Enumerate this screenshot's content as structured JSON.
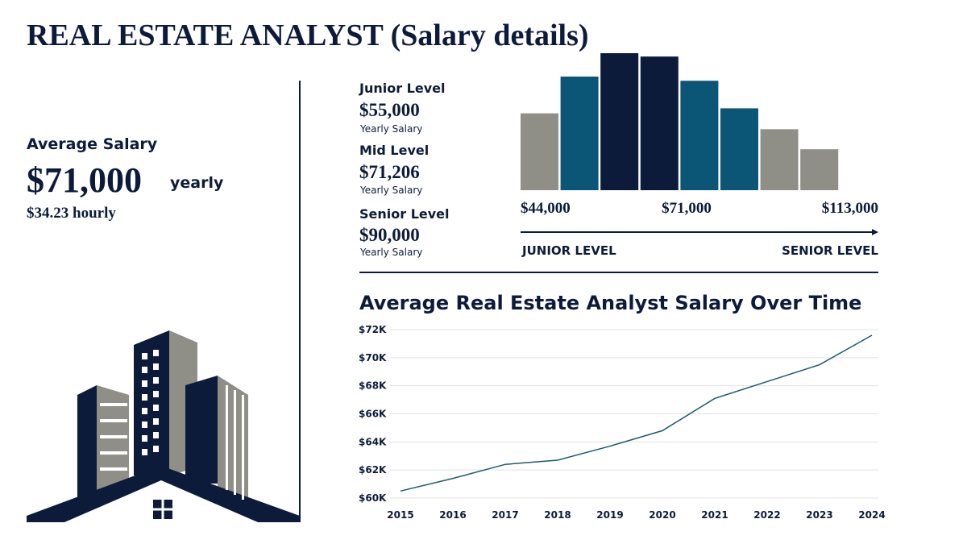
{
  "title": "REAL ESTATE ANALYST (Salary details)",
  "summary": {
    "label": "Average Salary",
    "value": "$71,000",
    "period": "yearly",
    "hourly": "$34.23 hourly"
  },
  "levels": [
    {
      "name": "Junior Level",
      "salary": "$55,000",
      "note": "Yearly Salary"
    },
    {
      "name": "Mid Level",
      "salary": "$71,206",
      "note": "Yearly Salary"
    },
    {
      "name": "Senior Level",
      "salary": "$90,000",
      "note": "Yearly Salary"
    }
  ],
  "chart_data": [
    {
      "type": "bar",
      "values": [
        92,
        136,
        164,
        160,
        131,
        98,
        73,
        49
      ],
      "colors": [
        "#8f8f88",
        "#0b5577",
        "#0d1b3a",
        "#0d1b3a",
        "#0b5577",
        "#0b5577",
        "#8f8f88",
        "#8f8f88"
      ],
      "x_labels": [
        "$44,000",
        "$71,000",
        "$113,000"
      ],
      "range_labels": [
        "JUNIOR LEVEL",
        "SENIOR LEVEL"
      ]
    },
    {
      "type": "line",
      "title": "Average Real Estate Analyst Salary Over Time",
      "categories": [
        "2015",
        "2016",
        "2017",
        "2018",
        "2019",
        "2020",
        "2021",
        "2022",
        "2023",
        "2024"
      ],
      "values": [
        60500,
        61400,
        62400,
        62700,
        63700,
        64800,
        67100,
        68300,
        69500,
        71600
      ],
      "color": "#1d5a70",
      "ylim": [
        60000,
        72000
      ],
      "yticks": [
        {
          "value": 60000,
          "label": "$60K"
        },
        {
          "value": 62000,
          "label": "$62K"
        },
        {
          "value": 64000,
          "label": "$64K"
        },
        {
          "value": 66000,
          "label": "$66K"
        },
        {
          "value": 68000,
          "label": "$68K"
        },
        {
          "value": 70000,
          "label": "$70K"
        },
        {
          "value": 72000,
          "label": "$72K"
        }
      ],
      "grid": true
    }
  ]
}
